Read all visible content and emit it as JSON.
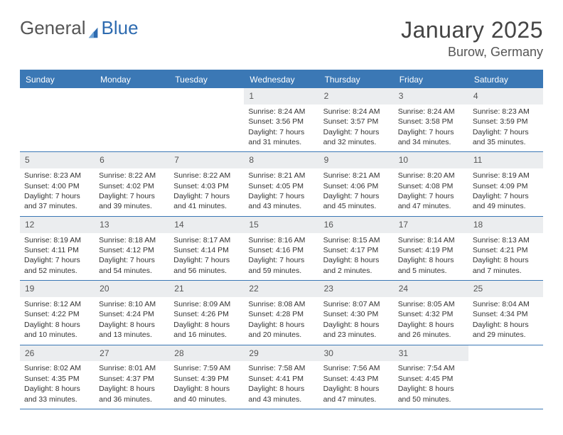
{
  "logo": {
    "text_left": "General",
    "text_right": "Blue"
  },
  "title": "January 2025",
  "location": "Burow, Germany",
  "colors": {
    "header_blue": "#3b78b5",
    "day_header_bg": "#ebedef",
    "text": "#333333",
    "logo_blue": "#2e6bb0"
  },
  "weekdays": [
    "Sunday",
    "Monday",
    "Tuesday",
    "Wednesday",
    "Thursday",
    "Friday",
    "Saturday"
  ],
  "weeks": [
    [
      {
        "empty": true
      },
      {
        "empty": true
      },
      {
        "empty": true
      },
      {
        "n": "1",
        "sunrise": "8:24 AM",
        "sunset": "3:56 PM",
        "dl1": "Daylight: 7 hours",
        "dl2": "and 31 minutes."
      },
      {
        "n": "2",
        "sunrise": "8:24 AM",
        "sunset": "3:57 PM",
        "dl1": "Daylight: 7 hours",
        "dl2": "and 32 minutes."
      },
      {
        "n": "3",
        "sunrise": "8:24 AM",
        "sunset": "3:58 PM",
        "dl1": "Daylight: 7 hours",
        "dl2": "and 34 minutes."
      },
      {
        "n": "4",
        "sunrise": "8:23 AM",
        "sunset": "3:59 PM",
        "dl1": "Daylight: 7 hours",
        "dl2": "and 35 minutes."
      }
    ],
    [
      {
        "n": "5",
        "sunrise": "8:23 AM",
        "sunset": "4:00 PM",
        "dl1": "Daylight: 7 hours",
        "dl2": "and 37 minutes."
      },
      {
        "n": "6",
        "sunrise": "8:22 AM",
        "sunset": "4:02 PM",
        "dl1": "Daylight: 7 hours",
        "dl2": "and 39 minutes."
      },
      {
        "n": "7",
        "sunrise": "8:22 AM",
        "sunset": "4:03 PM",
        "dl1": "Daylight: 7 hours",
        "dl2": "and 41 minutes."
      },
      {
        "n": "8",
        "sunrise": "8:21 AM",
        "sunset": "4:05 PM",
        "dl1": "Daylight: 7 hours",
        "dl2": "and 43 minutes."
      },
      {
        "n": "9",
        "sunrise": "8:21 AM",
        "sunset": "4:06 PM",
        "dl1": "Daylight: 7 hours",
        "dl2": "and 45 minutes."
      },
      {
        "n": "10",
        "sunrise": "8:20 AM",
        "sunset": "4:08 PM",
        "dl1": "Daylight: 7 hours",
        "dl2": "and 47 minutes."
      },
      {
        "n": "11",
        "sunrise": "8:19 AM",
        "sunset": "4:09 PM",
        "dl1": "Daylight: 7 hours",
        "dl2": "and 49 minutes."
      }
    ],
    [
      {
        "n": "12",
        "sunrise": "8:19 AM",
        "sunset": "4:11 PM",
        "dl1": "Daylight: 7 hours",
        "dl2": "and 52 minutes."
      },
      {
        "n": "13",
        "sunrise": "8:18 AM",
        "sunset": "4:12 PM",
        "dl1": "Daylight: 7 hours",
        "dl2": "and 54 minutes."
      },
      {
        "n": "14",
        "sunrise": "8:17 AM",
        "sunset": "4:14 PM",
        "dl1": "Daylight: 7 hours",
        "dl2": "and 56 minutes."
      },
      {
        "n": "15",
        "sunrise": "8:16 AM",
        "sunset": "4:16 PM",
        "dl1": "Daylight: 7 hours",
        "dl2": "and 59 minutes."
      },
      {
        "n": "16",
        "sunrise": "8:15 AM",
        "sunset": "4:17 PM",
        "dl1": "Daylight: 8 hours",
        "dl2": "and 2 minutes."
      },
      {
        "n": "17",
        "sunrise": "8:14 AM",
        "sunset": "4:19 PM",
        "dl1": "Daylight: 8 hours",
        "dl2": "and 5 minutes."
      },
      {
        "n": "18",
        "sunrise": "8:13 AM",
        "sunset": "4:21 PM",
        "dl1": "Daylight: 8 hours",
        "dl2": "and 7 minutes."
      }
    ],
    [
      {
        "n": "19",
        "sunrise": "8:12 AM",
        "sunset": "4:22 PM",
        "dl1": "Daylight: 8 hours",
        "dl2": "and 10 minutes."
      },
      {
        "n": "20",
        "sunrise": "8:10 AM",
        "sunset": "4:24 PM",
        "dl1": "Daylight: 8 hours",
        "dl2": "and 13 minutes."
      },
      {
        "n": "21",
        "sunrise": "8:09 AM",
        "sunset": "4:26 PM",
        "dl1": "Daylight: 8 hours",
        "dl2": "and 16 minutes."
      },
      {
        "n": "22",
        "sunrise": "8:08 AM",
        "sunset": "4:28 PM",
        "dl1": "Daylight: 8 hours",
        "dl2": "and 20 minutes."
      },
      {
        "n": "23",
        "sunrise": "8:07 AM",
        "sunset": "4:30 PM",
        "dl1": "Daylight: 8 hours",
        "dl2": "and 23 minutes."
      },
      {
        "n": "24",
        "sunrise": "8:05 AM",
        "sunset": "4:32 PM",
        "dl1": "Daylight: 8 hours",
        "dl2": "and 26 minutes."
      },
      {
        "n": "25",
        "sunrise": "8:04 AM",
        "sunset": "4:34 PM",
        "dl1": "Daylight: 8 hours",
        "dl2": "and 29 minutes."
      }
    ],
    [
      {
        "n": "26",
        "sunrise": "8:02 AM",
        "sunset": "4:35 PM",
        "dl1": "Daylight: 8 hours",
        "dl2": "and 33 minutes."
      },
      {
        "n": "27",
        "sunrise": "8:01 AM",
        "sunset": "4:37 PM",
        "dl1": "Daylight: 8 hours",
        "dl2": "and 36 minutes."
      },
      {
        "n": "28",
        "sunrise": "7:59 AM",
        "sunset": "4:39 PM",
        "dl1": "Daylight: 8 hours",
        "dl2": "and 40 minutes."
      },
      {
        "n": "29",
        "sunrise": "7:58 AM",
        "sunset": "4:41 PM",
        "dl1": "Daylight: 8 hours",
        "dl2": "and 43 minutes."
      },
      {
        "n": "30",
        "sunrise": "7:56 AM",
        "sunset": "4:43 PM",
        "dl1": "Daylight: 8 hours",
        "dl2": "and 47 minutes."
      },
      {
        "n": "31",
        "sunrise": "7:54 AM",
        "sunset": "4:45 PM",
        "dl1": "Daylight: 8 hours",
        "dl2": "and 50 minutes."
      },
      {
        "empty": true
      }
    ]
  ]
}
